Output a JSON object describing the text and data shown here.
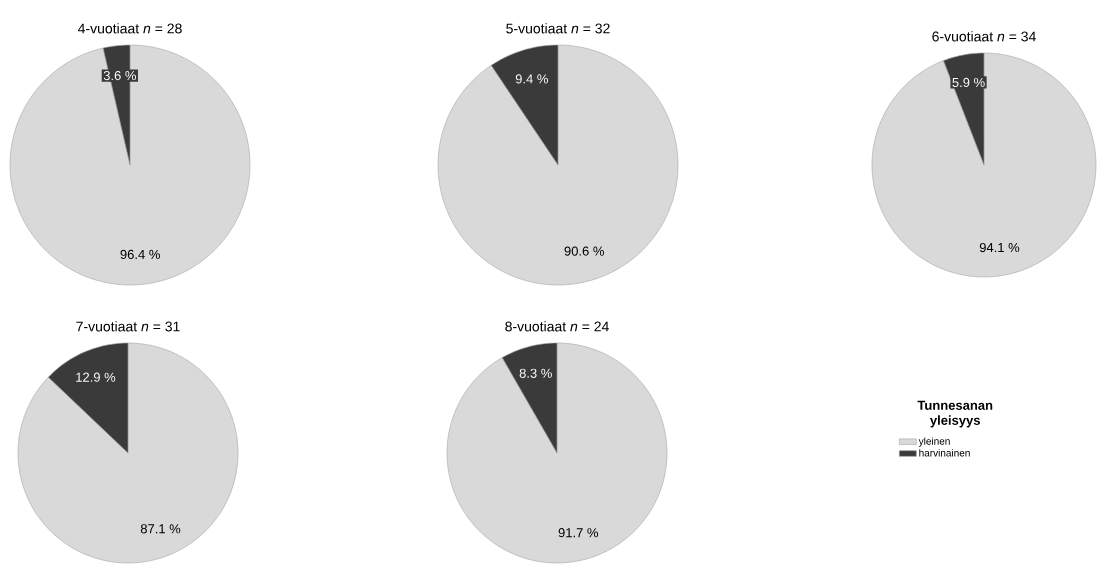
{
  "chart_data": [
    {
      "type": "pie",
      "title": "4-vuotiaat *n* = 28",
      "categories": [
        null,
        null
      ],
      "values": [
        96.4,
        3.6
      ],
      "colors": [
        "#d9d9d9",
        "#3a3a3a"
      ],
      "value_labels": [
        "96.4 %",
        "3.6 %"
      ]
    },
    {
      "type": "pie",
      "title": "5-vuotiaat *n* = 32",
      "categories": [
        null,
        null
      ],
      "values": [
        90.6,
        9.4
      ],
      "colors": [
        "#d9d9d9",
        "#3a3a3a"
      ],
      "value_labels": [
        "90.6 %",
        "9.4 %"
      ]
    },
    {
      "type": "pie",
      "title": "6-vuotiaat *n* = 34",
      "categories": [
        null,
        null
      ],
      "values": [
        94.1,
        5.9
      ],
      "colors": [
        "#d9d9d9",
        "#3a3a3a"
      ],
      "value_labels": [
        "94.1 %",
        "5.9 %"
      ]
    },
    {
      "type": "pie",
      "title": "7-vuotiaat *n* = 31",
      "categories": [
        null,
        null
      ],
      "values": [
        87.1,
        12.9
      ],
      "colors": [
        "#d9d9d9",
        "#3a3a3a"
      ],
      "value_labels": [
        "87.1 %",
        "12.9 %"
      ]
    },
    {
      "type": "pie",
      "title": "8-vuotiaat *n* = 24",
      "categories": [
        "yleinen",
        "harvinainen"
      ],
      "values": [
        91.7,
        8.3
      ],
      "colors": [
        "#d9d9d9",
        "#3a3a3a"
      ],
      "value_labels": [
        "91.7 %",
        "8.3 %"
      ],
      "legend": "right",
      "legend_title": "Tunnesanan yleisyys"
    }
  ]
}
